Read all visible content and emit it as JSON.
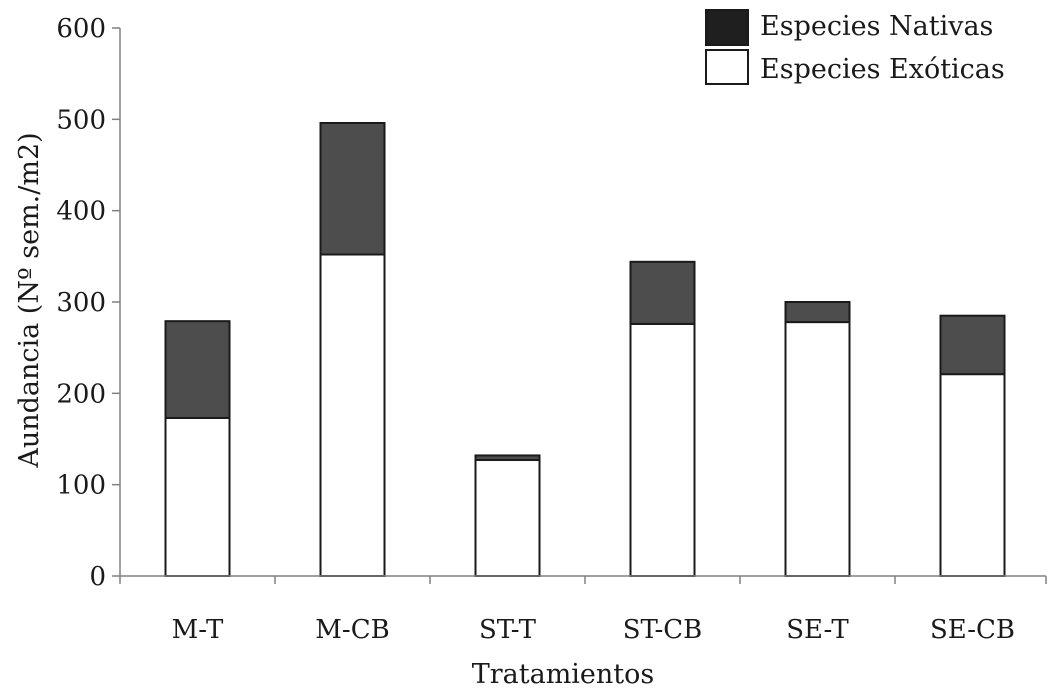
{
  "chart_data": {
    "type": "bar",
    "stacked": true,
    "categories": [
      "M-T",
      "M-CB",
      "ST-T",
      "ST-CB",
      "SE-T",
      "SE-CB"
    ],
    "series": [
      {
        "name": "Especies Exóticas",
        "values": [
          173,
          352,
          127,
          276,
          278,
          221
        ]
      },
      {
        "name": "Especies Nativas",
        "values": [
          106,
          144,
          5,
          68,
          22,
          64
        ]
      }
    ],
    "xlabel": "Tratamientos",
    "ylabel": "Aundancia (Nº sem./m2)",
    "ylim": [
      0,
      600
    ],
    "yticks": [
      0,
      100,
      200,
      300,
      400,
      500,
      600
    ],
    "legend_position": "top-right",
    "grid": false,
    "colors": {
      "Especies Exóticas": "#ffffff",
      "Especies Nativas": "#4d4d4d",
      "legend_nativas_swatch": "#1f1f1f",
      "outline": "#1a1a1a",
      "axis": "#808080"
    }
  }
}
